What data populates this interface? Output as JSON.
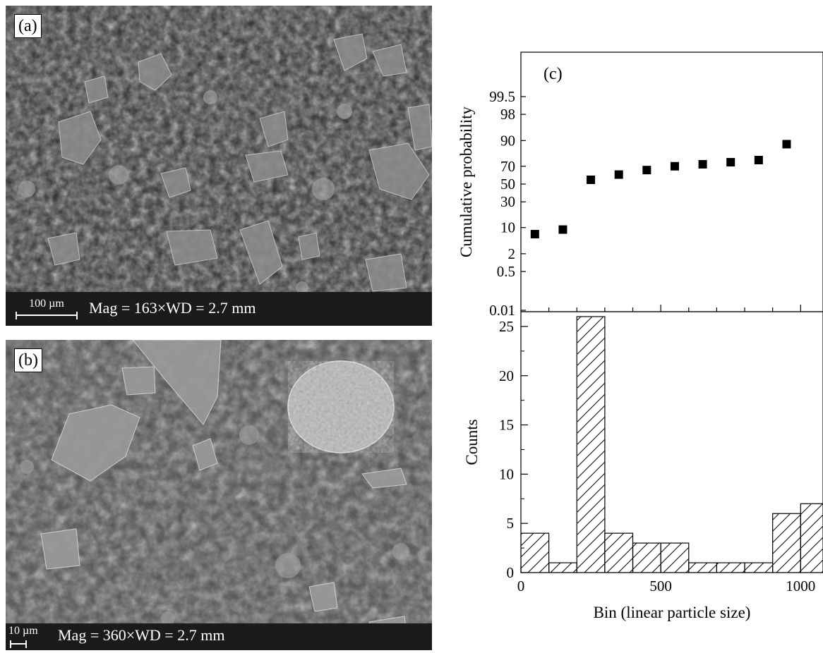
{
  "panels": [
    {
      "tag": "(a)",
      "scale_label": "100 µm",
      "mag_text": "Mag = 163×WD = 2.7 mm"
    },
    {
      "tag": "(b)",
      "scale_label": "10 µm",
      "mag_text": "Mag = 360×WD = 2.7 mm"
    }
  ],
  "chart_data": [
    {
      "type": "scatter",
      "panel_label": "(c)",
      "title": "",
      "xlabel": "",
      "ylabel": "Cumulative probability",
      "yscale": "probability",
      "y_ticks": [
        "99.5",
        "98",
        "90",
        "70",
        "50",
        "30",
        "10",
        "2",
        "0.5",
        "0.01"
      ],
      "xlim": [
        0,
        1080
      ],
      "x": [
        50,
        150,
        250,
        350,
        450,
        550,
        650,
        750,
        850,
        950
      ],
      "y": [
        7,
        9,
        55,
        61,
        66,
        70,
        72,
        74,
        76,
        88
      ],
      "grid": false,
      "color": "#000000"
    },
    {
      "type": "bar",
      "title": "",
      "xlabel": "Bin (linear particle size)",
      "ylabel": "Counts",
      "xlim": [
        0,
        1080
      ],
      "ylim": [
        0,
        26.5
      ],
      "x_ticks": [
        "0",
        "500",
        "1000"
      ],
      "y_ticks": [
        "0",
        "5",
        "10",
        "15",
        "20",
        "25"
      ],
      "bin_edges": [
        0,
        100,
        200,
        300,
        400,
        500,
        600,
        700,
        800,
        900,
        1000,
        1100
      ],
      "values": [
        4,
        1,
        26,
        4,
        3,
        3,
        1,
        1,
        1,
        6,
        7
      ],
      "hatch": "diagonal",
      "grid": false
    }
  ]
}
